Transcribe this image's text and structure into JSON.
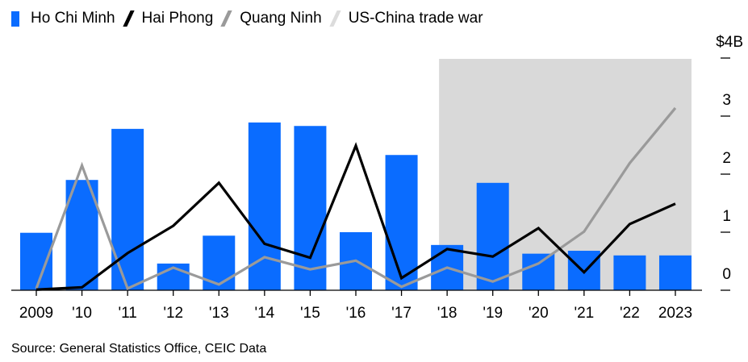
{
  "chart_data": {
    "type": "bar+line",
    "categories": [
      "2009",
      "'10",
      "'11",
      "'12",
      "'13",
      "'14",
      "'15",
      "'16",
      "'17",
      "'18",
      "'19",
      "'20",
      "'21",
      "'22",
      "2023"
    ],
    "series": [
      {
        "name": "Ho Chi Minh",
        "kind": "bar",
        "color": "#0a6cff",
        "values": [
          0.99,
          1.9,
          2.78,
          0.46,
          0.94,
          2.89,
          2.83,
          1.0,
          2.33,
          0.78,
          1.85,
          0.63,
          0.68,
          0.6,
          0.6
        ]
      },
      {
        "name": "Hai Phong",
        "kind": "line",
        "color": "#000000",
        "values": [
          0.01,
          0.05,
          0.64,
          1.11,
          1.85,
          0.8,
          0.56,
          2.49,
          0.21,
          0.71,
          0.58,
          1.07,
          0.31,
          1.14,
          1.49
        ]
      },
      {
        "name": "Quang Ninh",
        "kind": "line",
        "color": "#9a9a9a",
        "values": [
          0.03,
          2.15,
          0.03,
          0.39,
          0.1,
          0.57,
          0.36,
          0.51,
          0.06,
          0.39,
          0.15,
          0.46,
          1.01,
          2.19,
          3.14
        ]
      }
    ],
    "shaded": {
      "name": "US-China trade war",
      "color": "#d9d9d9",
      "from": "'18",
      "to": "2023"
    },
    "yticks": [
      "0",
      "1",
      "2",
      "3",
      "$4B"
    ],
    "ylim": [
      0,
      4
    ],
    "source": "Source: General Statistics Office, CEIC Data"
  }
}
